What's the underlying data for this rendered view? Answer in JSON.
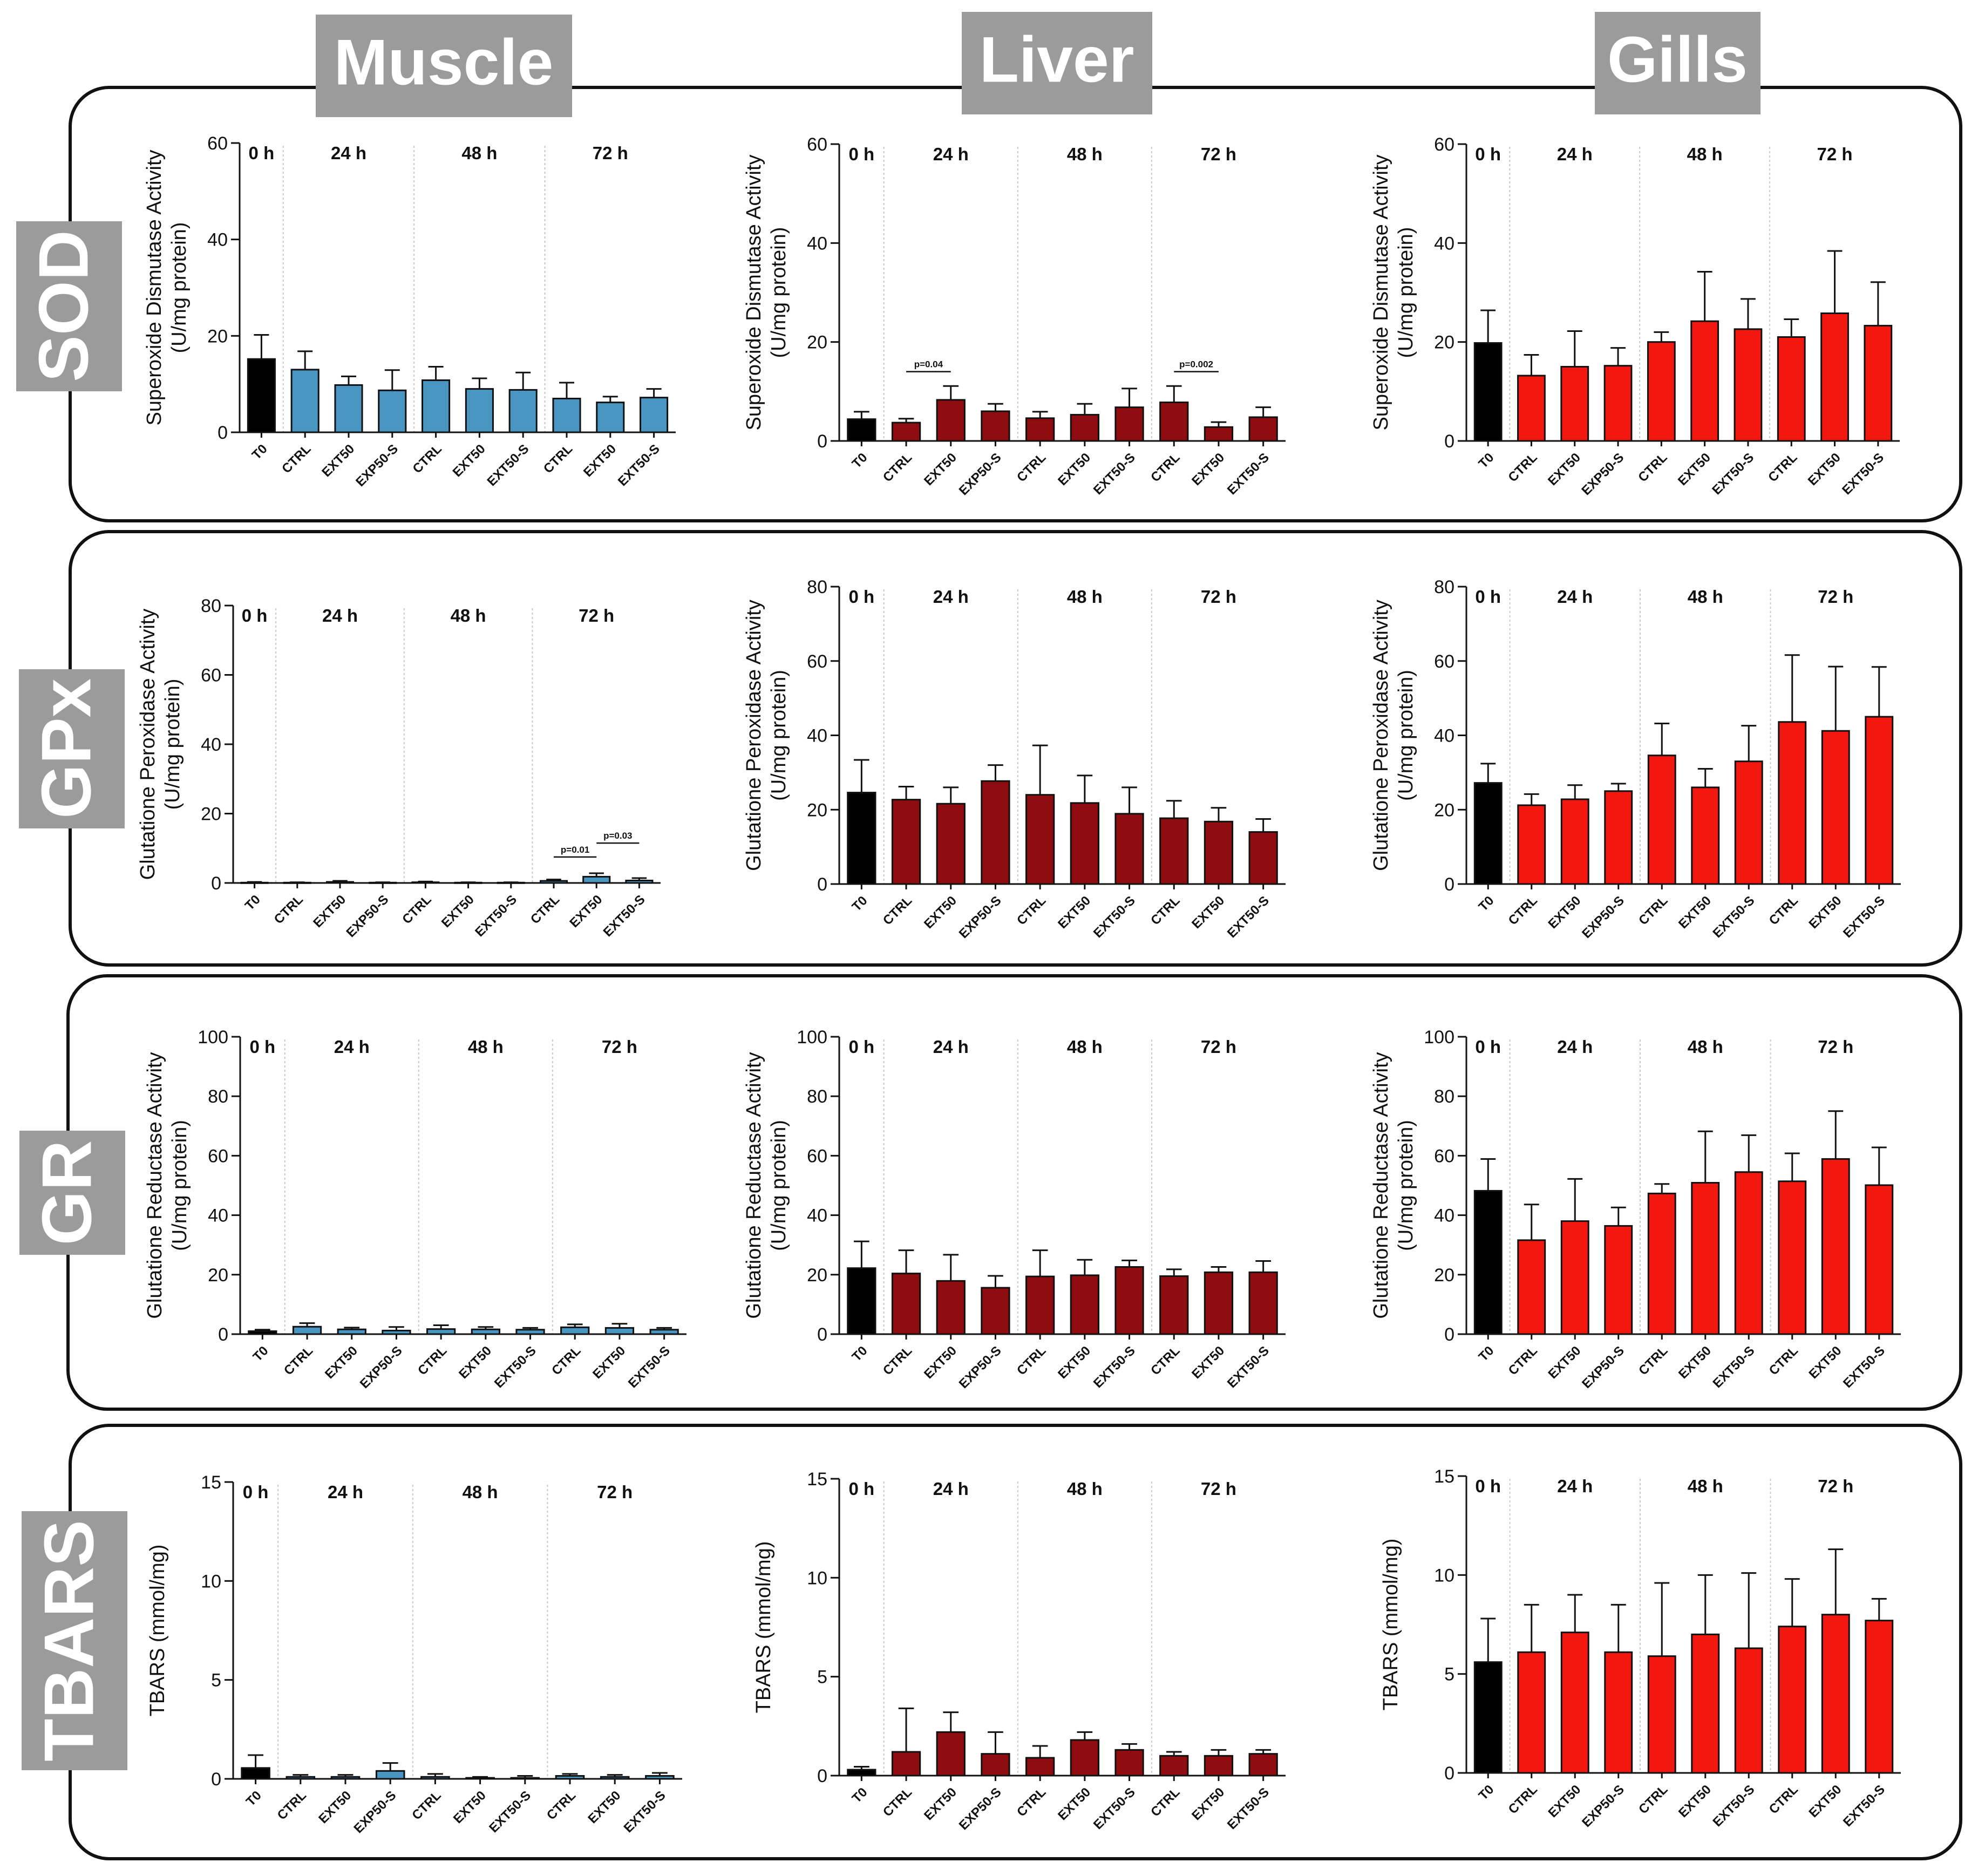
{
  "tissues": [
    "Muscle",
    "Liver",
    "Gills"
  ],
  "enzymes": [
    "SOD",
    "GPx",
    "GR",
    "TBARS"
  ],
  "categories": [
    "T0",
    "CTRL",
    "EXT50",
    "EXP50-S",
    "CTRL",
    "EXT50",
    "EXT50-S",
    "CTRL",
    "EXT50",
    "EXT50-S"
  ],
  "time_labels": [
    "0 h",
    "24 h",
    "48 h",
    "72 h"
  ],
  "colors": {
    "muscle": "#4a96c2",
    "liver": "#8f0d10",
    "gills": "#f2180f",
    "t0": "#000000",
    "box_border": "#111111",
    "label_bg": "#9b9b9b"
  },
  "chart_data": [
    {
      "id": "sod-muscle",
      "type": "bar",
      "title": "",
      "xlabel": "",
      "ylabel": [
        "Superoxide Dismutase Activity",
        "(U/mg protein)"
      ],
      "ylim": [
        0,
        60
      ],
      "yticks": [
        0,
        20,
        40,
        60
      ],
      "categories": [
        "T0",
        "CTRL",
        "EXT50",
        "EXP50-S",
        "CTRL",
        "EXT50",
        "EXT50-S",
        "CTRL",
        "EXT50",
        "EXT50-S"
      ],
      "values": [
        15.2,
        13.0,
        9.8,
        8.7,
        10.8,
        9.0,
        8.8,
        7.0,
        6.2,
        7.2
      ],
      "errors": [
        5.0,
        3.8,
        1.8,
        4.2,
        2.8,
        2.2,
        3.6,
        3.3,
        1.2,
        1.8
      ],
      "annotations": []
    },
    {
      "id": "sod-liver",
      "type": "bar",
      "title": "",
      "xlabel": "",
      "ylabel": [
        "Superoxide Dismutase Activity",
        "(U/mg protein)"
      ],
      "ylim": [
        0,
        60
      ],
      "yticks": [
        0,
        20,
        40,
        60
      ],
      "categories": [
        "T0",
        "CTRL",
        "EXT50",
        "EXP50-S",
        "CTRL",
        "EXT50",
        "EXT50-S",
        "CTRL",
        "EXT50",
        "EXT50-S"
      ],
      "values": [
        4.4,
        3.7,
        8.3,
        6.0,
        4.6,
        5.3,
        6.8,
        7.8,
        2.8,
        4.8
      ],
      "errors": [
        1.5,
        0.8,
        2.8,
        1.5,
        1.3,
        2.2,
        3.8,
        3.3,
        1.0,
        2.0
      ],
      "annotations": [
        {
          "text": "p=0.04",
          "from": 1,
          "to": 2,
          "y": 14
        },
        {
          "text": "p=0.002",
          "from": 7,
          "to": 8,
          "y": 14
        }
      ]
    },
    {
      "id": "sod-gills",
      "type": "bar",
      "title": "",
      "xlabel": "",
      "ylabel": [
        "Superoxide Dismutase Activity",
        "(U/mg protein)"
      ],
      "ylim": [
        0,
        60
      ],
      "yticks": [
        0,
        20,
        40,
        60
      ],
      "categories": [
        "T0",
        "CTRL",
        "EXT50",
        "EXP50-S",
        "CTRL",
        "EXT50",
        "EXT50-S",
        "CTRL",
        "EXT50",
        "EXT50-S"
      ],
      "values": [
        19.8,
        13.2,
        15.0,
        15.2,
        20.0,
        24.2,
        22.6,
        21.0,
        25.8,
        23.3
      ],
      "errors": [
        6.6,
        4.2,
        7.2,
        3.6,
        2.0,
        10.0,
        6.1,
        3.6,
        12.6,
        8.8
      ],
      "annotations": []
    },
    {
      "id": "gpx-muscle",
      "type": "bar",
      "title": "",
      "xlabel": "",
      "ylabel": [
        "Glutatione Peroxidase Activity",
        "(U/mg protein)"
      ],
      "ylim": [
        0,
        80
      ],
      "yticks": [
        0,
        20,
        40,
        60,
        80
      ],
      "categories": [
        "T0",
        "CTRL",
        "EXT50",
        "EXP50-S",
        "CTRL",
        "EXT50",
        "EXT50-S",
        "CTRL",
        "EXT50",
        "EXT50-S"
      ],
      "values": [
        0.1,
        0.1,
        0.3,
        0.1,
        0.2,
        0.1,
        0.1,
        0.6,
        1.8,
        0.7
      ],
      "errors": [
        0.2,
        0.1,
        0.3,
        0.1,
        0.2,
        0.1,
        0.1,
        0.4,
        1.0,
        0.7
      ],
      "annotations": [
        {
          "text": "p=0.01",
          "from": 7,
          "to": 8,
          "y": 7.5
        },
        {
          "text": "p=0.03",
          "from": 8,
          "to": 9,
          "y": 11.5
        }
      ]
    },
    {
      "id": "gpx-liver",
      "type": "bar",
      "title": "",
      "xlabel": "",
      "ylabel": [
        "Glutatione Peroxidase Activity",
        "(U/mg protein)"
      ],
      "ylim": [
        0,
        80
      ],
      "yticks": [
        0,
        20,
        40,
        60,
        80
      ],
      "categories": [
        "T0",
        "CTRL",
        "EXT50",
        "EXP50-S",
        "CTRL",
        "EXT50",
        "EXT50-S",
        "CTRL",
        "EXT50",
        "EXT50-S"
      ],
      "values": [
        24.6,
        22.7,
        21.6,
        27.7,
        24.0,
        21.8,
        18.9,
        17.7,
        16.8,
        14.0
      ],
      "errors": [
        8.8,
        3.5,
        4.4,
        4.3,
        13.3,
        7.4,
        7.1,
        4.7,
        3.7,
        3.5
      ],
      "annotations": []
    },
    {
      "id": "gpx-gills",
      "type": "bar",
      "title": "",
      "xlabel": "",
      "ylabel": [
        "Glutatione Peroxidase Activity",
        "(U/mg protein)"
      ],
      "ylim": [
        0,
        80
      ],
      "yticks": [
        0,
        20,
        40,
        60,
        80
      ],
      "categories": [
        "T0",
        "CTRL",
        "EXT50",
        "EXP50-S",
        "CTRL",
        "EXT50",
        "EXT50-S",
        "CTRL",
        "EXT50",
        "EXT50-S"
      ],
      "values": [
        27.2,
        21.2,
        22.8,
        25.0,
        34.6,
        26.0,
        33.0,
        43.6,
        41.2,
        45.0
      ],
      "errors": [
        5.2,
        3.0,
        3.8,
        2.0,
        8.6,
        5.0,
        9.6,
        18.0,
        17.3,
        13.4
      ],
      "annotations": []
    },
    {
      "id": "gr-muscle",
      "type": "bar",
      "title": "",
      "xlabel": "",
      "ylabel": [
        "Glutatione Reductase Activity",
        "(U/mg protein)"
      ],
      "ylim": [
        0,
        100
      ],
      "yticks": [
        0,
        20,
        40,
        60,
        80,
        100
      ],
      "categories": [
        "T0",
        "CTRL",
        "EXT50",
        "EXP50-S",
        "CTRL",
        "EXT50",
        "EXT50-S",
        "CTRL",
        "EXT50",
        "EXT50-S"
      ],
      "values": [
        1.0,
        2.5,
        1.6,
        1.2,
        1.7,
        1.6,
        1.5,
        2.3,
        2.1,
        1.5
      ],
      "errors": [
        0.5,
        1.2,
        0.6,
        1.2,
        1.3,
        0.8,
        0.6,
        1.0,
        1.4,
        0.6
      ],
      "annotations": []
    },
    {
      "id": "gr-liver",
      "type": "bar",
      "title": "",
      "xlabel": "",
      "ylabel": [
        "Glutatione Reductase Activity",
        "(U/mg protein)"
      ],
      "ylim": [
        0,
        100
      ],
      "yticks": [
        0,
        20,
        40,
        60,
        80,
        100
      ],
      "categories": [
        "T0",
        "CTRL",
        "EXT50",
        "EXP50-S",
        "CTRL",
        "EXT50",
        "EXT50-S",
        "CTRL",
        "EXT50",
        "EXT50-S"
      ],
      "values": [
        22.2,
        20.4,
        17.9,
        15.6,
        19.4,
        19.8,
        22.6,
        19.5,
        20.8,
        20.8
      ],
      "errors": [
        9.0,
        7.8,
        8.8,
        4.0,
        8.8,
        5.2,
        2.2,
        2.3,
        1.8,
        3.8
      ],
      "annotations": []
    },
    {
      "id": "gr-gills",
      "type": "bar",
      "title": "",
      "xlabel": "",
      "ylabel": [
        "Glutatione Reductase Activity",
        "(U/mg protein)"
      ],
      "ylim": [
        0,
        100
      ],
      "yticks": [
        0,
        20,
        40,
        60,
        80,
        100
      ],
      "categories": [
        "T0",
        "CTRL",
        "EXT50",
        "EXP50-S",
        "CTRL",
        "EXT50",
        "EXT50-S",
        "CTRL",
        "EXT50",
        "EXT50-S"
      ],
      "values": [
        48.2,
        31.6,
        38.0,
        36.4,
        47.3,
        50.9,
        54.5,
        51.4,
        58.9,
        50.1
      ],
      "errors": [
        10.7,
        12.0,
        14.2,
        6.2,
        3.2,
        17.3,
        12.4,
        9.4,
        16.1,
        12.7
      ],
      "annotations": []
    },
    {
      "id": "tbars-muscle",
      "type": "bar",
      "title": "",
      "xlabel": "",
      "ylabel": [
        "TBARS (mmol/mg)"
      ],
      "ylim": [
        0,
        15
      ],
      "yticks": [
        0,
        5,
        10,
        15
      ],
      "categories": [
        "T0",
        "CTRL",
        "EXT50",
        "EXP50-S",
        "CTRL",
        "EXT50",
        "EXT50-S",
        "CTRL",
        "EXT50",
        "EXT50-S"
      ],
      "values": [
        0.55,
        0.1,
        0.1,
        0.4,
        0.1,
        0.05,
        0.05,
        0.15,
        0.1,
        0.15
      ],
      "errors": [
        0.65,
        0.1,
        0.1,
        0.4,
        0.15,
        0.05,
        0.1,
        0.1,
        0.1,
        0.15
      ],
      "annotations": []
    },
    {
      "id": "tbars-liver",
      "type": "bar",
      "title": "",
      "xlabel": "",
      "ylabel": [
        "TBARS (mmol/mg)"
      ],
      "ylim": [
        0,
        15
      ],
      "yticks": [
        0,
        5,
        10,
        15
      ],
      "categories": [
        "T0",
        "CTRL",
        "EXT50",
        "EXP50-S",
        "CTRL",
        "EXT50",
        "EXT50-S",
        "CTRL",
        "EXT50",
        "EXT50-S"
      ],
      "values": [
        0.3,
        1.2,
        2.2,
        1.1,
        0.9,
        1.8,
        1.3,
        1.0,
        1.0,
        1.1
      ],
      "errors": [
        0.15,
        2.2,
        1.0,
        1.1,
        0.6,
        0.4,
        0.3,
        0.2,
        0.3,
        0.2
      ],
      "annotations": []
    },
    {
      "id": "tbars-gills",
      "type": "bar",
      "title": "",
      "xlabel": "",
      "ylabel": [
        "TBARS (mmol/mg)"
      ],
      "ylim": [
        0,
        15
      ],
      "yticks": [
        0,
        5,
        10,
        15
      ],
      "categories": [
        "T0",
        "CTRL",
        "EXT50",
        "EXP50-S",
        "CTRL",
        "EXT50",
        "EXT50-S",
        "CTRL",
        "EXT50",
        "EXT50-S"
      ],
      "values": [
        5.6,
        6.1,
        7.1,
        6.1,
        5.9,
        7.0,
        6.3,
        7.4,
        8.0,
        7.7
      ],
      "errors": [
        2.2,
        2.4,
        1.9,
        2.4,
        3.7,
        3.0,
        3.8,
        2.4,
        3.3,
        1.1
      ],
      "annotations": []
    }
  ]
}
